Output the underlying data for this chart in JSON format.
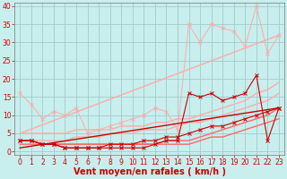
{
  "background_color": "#c8eeed",
  "grid_color": "#a0cccc",
  "xlabel": "Vent moyen/en rafales ( km/h )",
  "xlabel_color": "#cc0000",
  "xlabel_fontsize": 7,
  "tick_color": "#cc0000",
  "tick_fontsize": 5.5,
  "xlim": [
    -0.5,
    23.5
  ],
  "ylim": [
    -1,
    41
  ],
  "yticks": [
    0,
    5,
    10,
    15,
    20,
    25,
    30,
    35,
    40
  ],
  "xticks": [
    0,
    1,
    2,
    3,
    4,
    5,
    6,
    7,
    8,
    9,
    10,
    11,
    12,
    13,
    14,
    15,
    16,
    17,
    18,
    19,
    20,
    21,
    22,
    23
  ],
  "lines": [
    {
      "x": [
        0,
        1,
        2,
        3,
        4,
        5,
        6,
        7,
        8,
        9,
        10,
        11,
        12,
        13,
        14,
        15,
        16,
        17,
        18,
        19,
        20,
        21,
        22,
        23
      ],
      "y": [
        5,
        5,
        5,
        5,
        5,
        6,
        6,
        6,
        6,
        7,
        7,
        7,
        8,
        8,
        9,
        9,
        10,
        11,
        12,
        13,
        14,
        16,
        17,
        19
      ],
      "color": "#ffaaaa",
      "marker": null,
      "lw": 1.0,
      "ms": 0,
      "ls": "-"
    },
    {
      "x": [
        0,
        1,
        2,
        3,
        4,
        5,
        6,
        7,
        8,
        9,
        10,
        11,
        12,
        13,
        14,
        15,
        16,
        17,
        18,
        19,
        20,
        21,
        22,
        23
      ],
      "y": [
        3,
        3,
        3,
        3,
        3,
        4,
        4,
        4,
        5,
        5,
        5,
        6,
        6,
        6,
        7,
        8,
        8,
        9,
        10,
        11,
        12,
        13,
        14,
        16
      ],
      "color": "#ffaaaa",
      "marker": null,
      "lw": 1.0,
      "ms": 0,
      "ls": "-"
    },
    {
      "x": [
        0,
        1,
        2,
        3,
        4,
        5,
        6,
        7,
        8,
        9,
        10,
        11,
        12,
        13,
        14,
        15,
        16,
        17,
        18,
        19,
        20,
        21,
        22,
        23
      ],
      "y": [
        16,
        13,
        9,
        11,
        10,
        12,
        5,
        6,
        7,
        8,
        9,
        10,
        12,
        11,
        6,
        35,
        30,
        35,
        34,
        33,
        29,
        40,
        27,
        32
      ],
      "color": "#ffaaaa",
      "marker": "x",
      "lw": 0.7,
      "ms": 3,
      "ls": "-"
    },
    {
      "x": [
        0,
        1,
        2,
        3,
        4,
        5,
        6,
        7,
        8,
        9,
        10,
        11,
        12,
        13,
        14,
        15,
        16,
        17,
        18,
        19,
        20,
        21,
        22,
        23
      ],
      "y": [
        3,
        3,
        2,
        2,
        2,
        2,
        2,
        2,
        2,
        2,
        2,
        2,
        2,
        3,
        3,
        3,
        4,
        5,
        6,
        7,
        8,
        9,
        10,
        12
      ],
      "color": "#ff6666",
      "marker": null,
      "lw": 1.0,
      "ms": 0,
      "ls": "-"
    },
    {
      "x": [
        0,
        1,
        2,
        3,
        4,
        5,
        6,
        7,
        8,
        9,
        10,
        11,
        12,
        13,
        14,
        15,
        16,
        17,
        18,
        19,
        20,
        21,
        22,
        23
      ],
      "y": [
        2,
        2,
        2,
        2,
        2,
        2,
        2,
        2,
        2,
        2,
        2,
        2,
        2,
        2,
        2,
        2,
        3,
        4,
        4,
        5,
        6,
        7,
        8,
        9
      ],
      "color": "#ff6666",
      "marker": null,
      "lw": 1.0,
      "ms": 0,
      "ls": "-"
    },
    {
      "x": [
        0,
        1,
        2,
        3,
        4,
        5,
        6,
        7,
        8,
        9,
        10,
        11,
        12,
        13,
        14,
        15,
        16,
        17,
        18,
        19,
        20,
        21,
        22,
        23
      ],
      "y": [
        3,
        3,
        2,
        2,
        1,
        1,
        1,
        1,
        1,
        1,
        1,
        1,
        2,
        3,
        3,
        16,
        15,
        16,
        14,
        15,
        16,
        21,
        3,
        12
      ],
      "color": "#cc0000",
      "marker": "x",
      "lw": 0.8,
      "ms": 3,
      "ls": "-"
    },
    {
      "x": [
        0,
        1,
        2,
        3,
        4,
        5,
        6,
        7,
        8,
        9,
        10,
        11,
        12,
        13,
        14,
        15,
        16,
        17,
        18,
        19,
        20,
        21,
        22,
        23
      ],
      "y": [
        3,
        3,
        2,
        2,
        1,
        1,
        1,
        1,
        2,
        2,
        2,
        3,
        3,
        4,
        4,
        5,
        6,
        7,
        7,
        8,
        9,
        10,
        11,
        12
      ],
      "color": "#cc0000",
      "marker": "x",
      "lw": 0.8,
      "ms": 3,
      "ls": "-"
    },
    {
      "x": [
        0,
        23
      ],
      "y": [
        1,
        12
      ],
      "color": "#cc0000",
      "marker": null,
      "lw": 1.0,
      "ms": 0,
      "ls": "-"
    },
    {
      "x": [
        0,
        23
      ],
      "y": [
        5,
        32
      ],
      "color": "#ffaaaa",
      "marker": null,
      "lw": 1.0,
      "ms": 0,
      "ls": "-"
    }
  ]
}
